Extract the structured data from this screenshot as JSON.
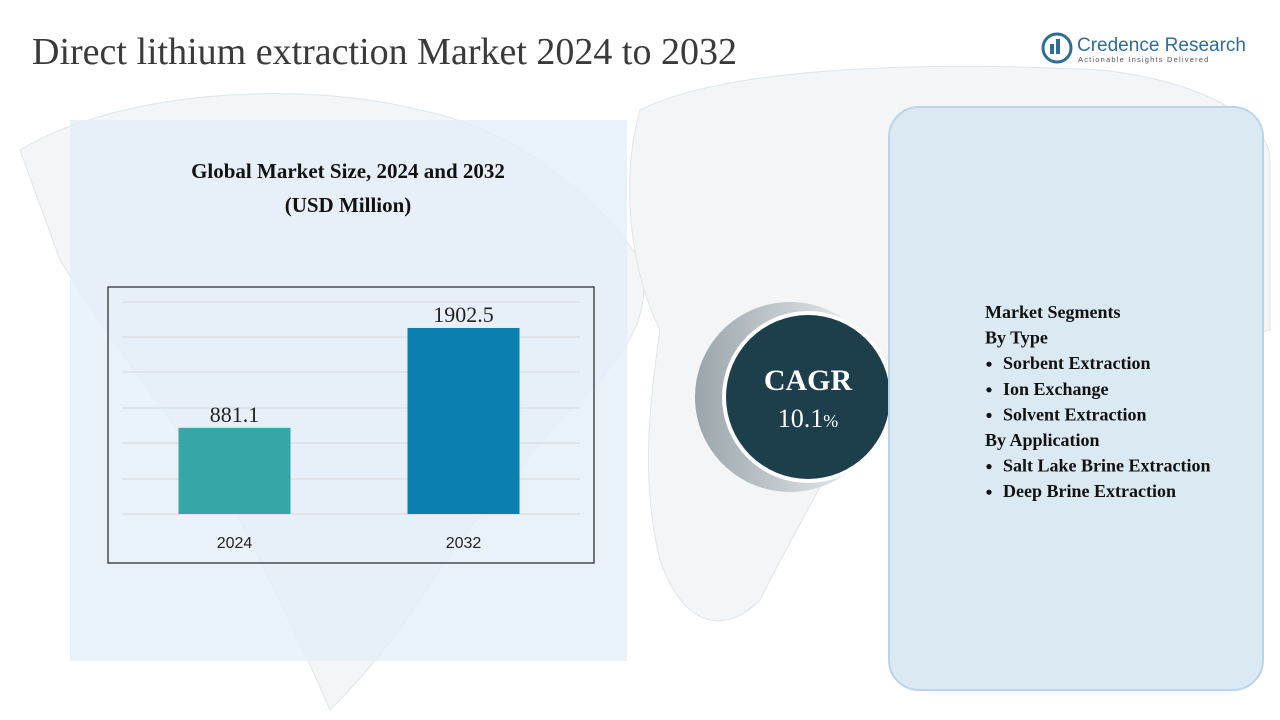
{
  "title": "Direct lithium extraction Market 2024 to 2032",
  "logo": {
    "name": "Credence Research",
    "tagline": "Actionable Insights Delivered"
  },
  "chart_data": {
    "type": "bar",
    "title": "Global Market Size, 2024 and 2032",
    "subtitle": "(USD Million)",
    "categories": [
      "2024",
      "2032"
    ],
    "values": [
      881.1,
      1902.5
    ],
    "colors": [
      "#36a6a6",
      "#0a7fb0"
    ],
    "ylim": [
      0,
      2250
    ]
  },
  "cagr": {
    "label": "CAGR",
    "value": "10.1",
    "unit": "%"
  },
  "segments": {
    "heading": "Market Segments",
    "groups": [
      {
        "name": "By Type",
        "items": [
          "Sorbent Extraction",
          "Ion Exchange",
          "Solvent Extraction"
        ]
      },
      {
        "name": "By Application",
        "items": [
          "Salt Lake Brine Extraction",
          "Deep Brine Extraction"
        ]
      }
    ]
  }
}
